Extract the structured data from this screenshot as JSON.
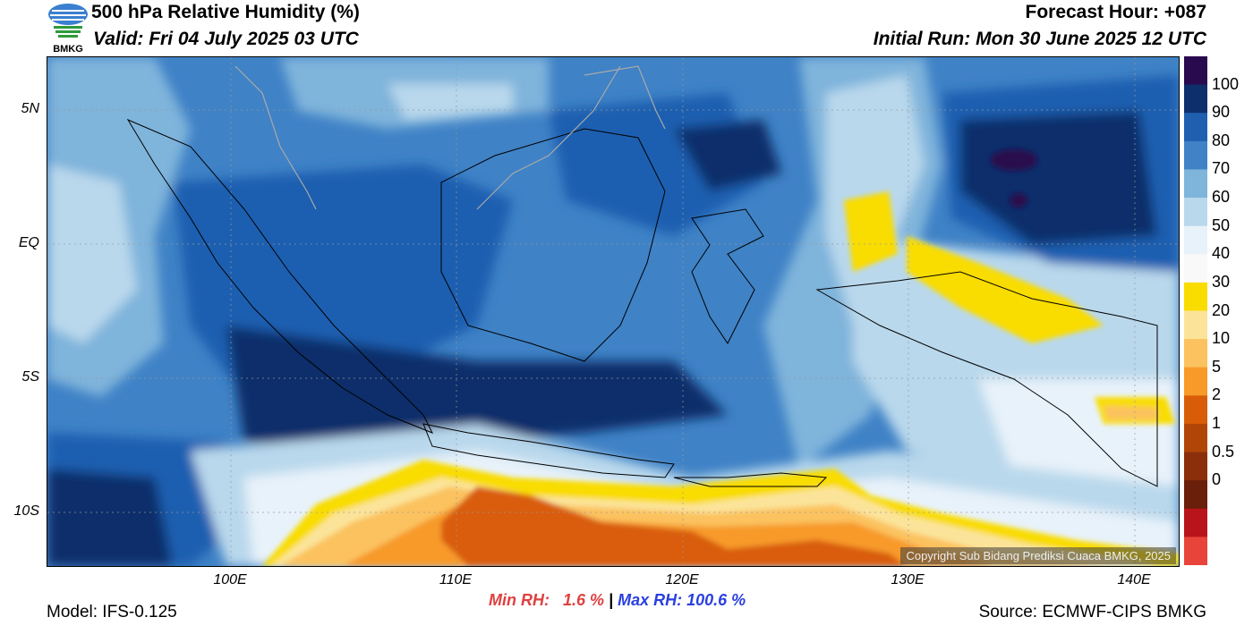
{
  "header": {
    "title": "500 hPa Relative Humidity (%)",
    "valid": "Valid: Fri 04 July 2025 03 UTC",
    "forecast_hour": "Forecast Hour: +087",
    "initial_run": "Initial Run: Mon 30 June 2025 12 UTC"
  },
  "logo": {
    "text": "BMKG",
    "icon": "bmkg-logo-icon"
  },
  "axes": {
    "lat_labels": [
      "5N",
      "EQ",
      "5S",
      "10S"
    ],
    "lon_labels": [
      "100E",
      "110E",
      "120E",
      "130E",
      "140E"
    ]
  },
  "colorbar": {
    "labels": [
      "100",
      "90",
      "80",
      "70",
      "60",
      "50",
      "40",
      "30",
      "20",
      "10",
      "5",
      "2",
      "1",
      "0.5",
      "0"
    ],
    "colors": [
      "#2a0a4e",
      "#0d2f6b",
      "#1f5fb0",
      "#3f82c6",
      "#7fb4db",
      "#b9d8ec",
      "#e8f2fa",
      "#f9f9f9",
      "#f9dc00",
      "#fbe49a",
      "#fbc25f",
      "#f79a2a",
      "#d95d08",
      "#b14508",
      "#8a2f0a",
      "#6a1f0a",
      "#b8141a",
      "#e8443a"
    ]
  },
  "stats": {
    "min": "Min RH:   1.6 %",
    "sep": "|",
    "max": "Max RH: 100.6 %"
  },
  "copyright": "Copyright Sub Bidang Prediksi Cuaca BMKG, 2025",
  "footer": {
    "model": "Model: IFS-0.125",
    "source": "Source: ECMWF-CIPS BMKG"
  }
}
